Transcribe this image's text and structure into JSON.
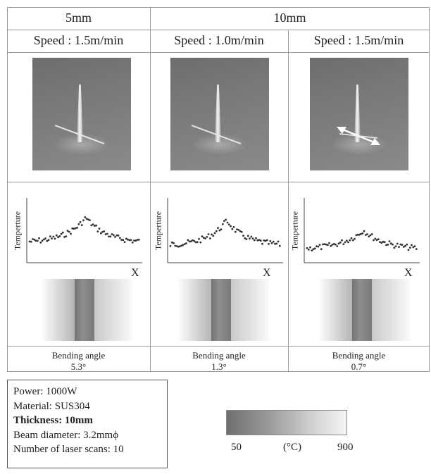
{
  "headers": {
    "thickness_5": "5mm",
    "thickness_10": "10mm",
    "speed_1": "Speed : 1.5m/min",
    "speed_2": "Speed : 1.0m/min",
    "speed_3": "Speed : 1.5m/min"
  },
  "plots": {
    "ylabel": "Temperture",
    "xlabel": "X"
  },
  "results": [
    {
      "label": "Bending angle",
      "angle": "5.3°"
    },
    {
      "label": "Bending angle",
      "angle": "1.3°"
    },
    {
      "label": "Bending angle",
      "angle": "0.7°"
    }
  ],
  "conditions": {
    "power": "Power: 1000W",
    "material": "Material: SUS304",
    "thickness": "Thickness: 10mm",
    "beam": "Beam diameter: 3.2mmϕ",
    "scans": "Number of laser scans: 10"
  },
  "colorbar": {
    "min": "50",
    "unit": "(°C)",
    "max": "900"
  }
}
